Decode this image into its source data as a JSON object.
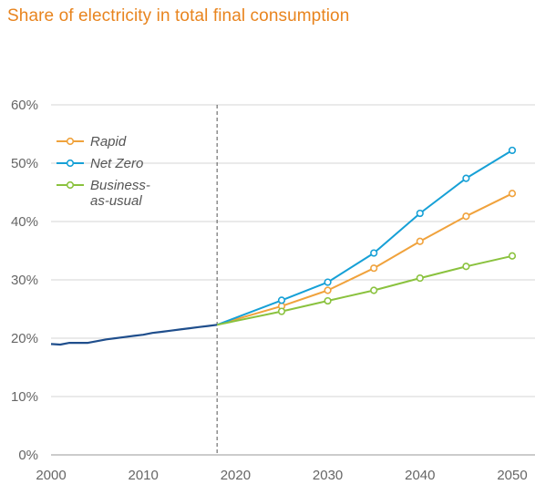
{
  "title": "Share of electricity in total final consumption",
  "chart_data": {
    "type": "line",
    "title": "Share of electricity in total final consumption",
    "xlabel": "",
    "ylabel": "",
    "xlim": [
      2000,
      2050
    ],
    "ylim": [
      0,
      60
    ],
    "grid": true,
    "legend_position": "top-left",
    "divider_year": 2018,
    "x_ticks": [
      {
        "value": 2000,
        "label": "2000"
      },
      {
        "value": 2010,
        "label": "2010"
      },
      {
        "value": 2020,
        "label": "2020"
      },
      {
        "value": 2030,
        "label": "2030"
      },
      {
        "value": 2040,
        "label": "2040"
      },
      {
        "value": 2050,
        "label": "2050"
      }
    ],
    "y_ticks": [
      {
        "value": 0,
        "label": "0%"
      },
      {
        "value": 10,
        "label": "10%"
      },
      {
        "value": 20,
        "label": "20%"
      },
      {
        "value": 30,
        "label": "30%"
      },
      {
        "value": 40,
        "label": "40%"
      },
      {
        "value": 50,
        "label": "50%"
      },
      {
        "value": 60,
        "label": "60%"
      }
    ],
    "historical": {
      "color": "#1f4e8c",
      "points": [
        [
          2000,
          19.0
        ],
        [
          2001,
          18.9
        ],
        [
          2002,
          19.2
        ],
        [
          2003,
          19.2
        ],
        [
          2004,
          19.2
        ],
        [
          2005,
          19.5
        ],
        [
          2006,
          19.8
        ],
        [
          2007,
          20.0
        ],
        [
          2008,
          20.2
        ],
        [
          2009,
          20.4
        ],
        [
          2010,
          20.6
        ],
        [
          2011,
          20.9
        ],
        [
          2012,
          21.1
        ],
        [
          2013,
          21.3
        ],
        [
          2014,
          21.5
        ],
        [
          2015,
          21.7
        ],
        [
          2016,
          21.9
        ],
        [
          2017,
          22.1
        ],
        [
          2018,
          22.3
        ]
      ]
    },
    "series": [
      {
        "name": "Rapid",
        "color": "#f0a23c",
        "points": [
          [
            2018,
            22.3
          ],
          [
            2025,
            25.5
          ],
          [
            2030,
            28.2
          ],
          [
            2035,
            32.0
          ],
          [
            2040,
            36.6
          ],
          [
            2045,
            40.9
          ],
          [
            2050,
            44.8
          ]
        ]
      },
      {
        "name": "Net Zero",
        "color": "#16a0d6",
        "points": [
          [
            2018,
            22.3
          ],
          [
            2025,
            26.5
          ],
          [
            2030,
            29.6
          ],
          [
            2035,
            34.6
          ],
          [
            2040,
            41.4
          ],
          [
            2045,
            47.4
          ],
          [
            2050,
            52.2
          ]
        ]
      },
      {
        "name": "Business-as-usual",
        "color": "#8ac23e",
        "points": [
          [
            2018,
            22.3
          ],
          [
            2025,
            24.6
          ],
          [
            2030,
            26.4
          ],
          [
            2035,
            28.2
          ],
          [
            2040,
            30.3
          ],
          [
            2045,
            32.3
          ],
          [
            2050,
            34.1
          ]
        ]
      }
    ],
    "legend": [
      {
        "lines": [
          "Rapid"
        ],
        "color": "#f0a23c"
      },
      {
        "lines": [
          "Net Zero"
        ],
        "color": "#16a0d6"
      },
      {
        "lines": [
          "Business-",
          "as-usual"
        ],
        "color": "#8ac23e"
      }
    ]
  }
}
